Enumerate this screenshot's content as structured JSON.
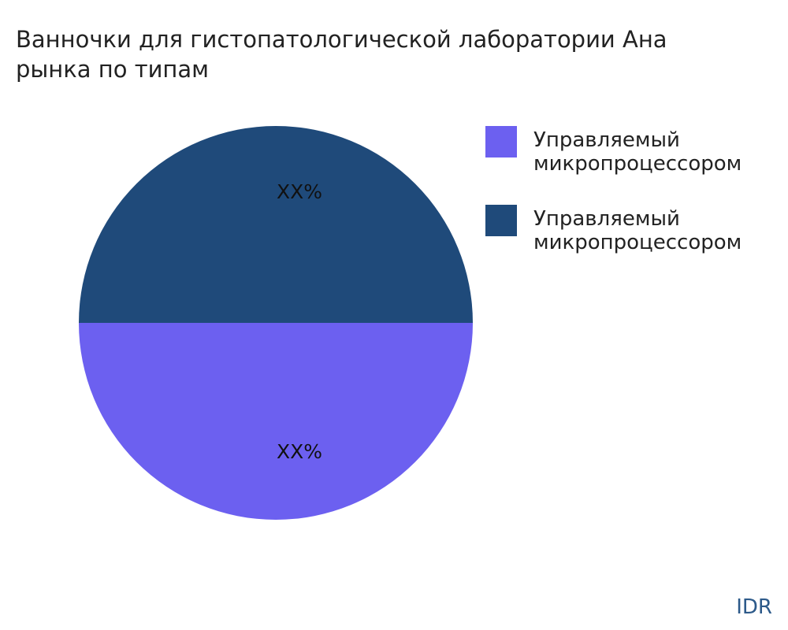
{
  "chart_data": {
    "type": "pie",
    "title_lines": [
      "Ванночки для гистопатологической лаборатории Ана",
      "рынка по типам"
    ],
    "categories": [
      "Управляемый микропроцессором",
      "Управляемый микропроцессором"
    ],
    "values": [
      50,
      50
    ],
    "value_labels": [
      "XX%",
      "XX%"
    ],
    "colors": [
      "#6c60f0",
      "#1f4a7a"
    ],
    "legend": "right",
    "watermark": "IDR"
  }
}
